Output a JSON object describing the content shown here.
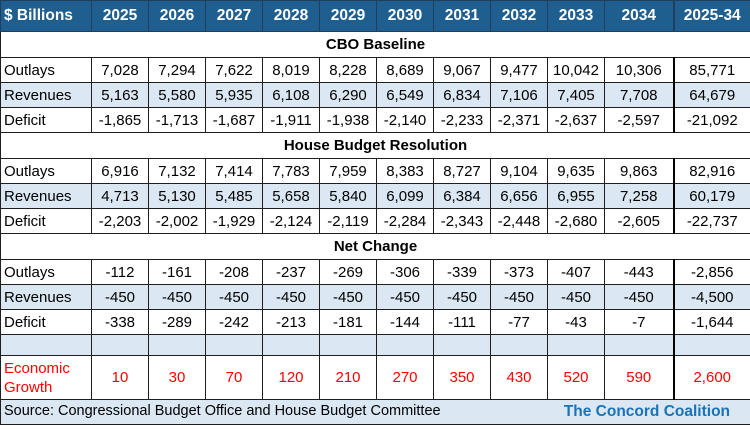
{
  "header": {
    "label": "$ Billions",
    "columns": [
      "2025",
      "2026",
      "2027",
      "2028",
      "2029",
      "2030",
      "2031",
      "2032",
      "2033",
      "2034",
      "2025-34"
    ]
  },
  "sections": [
    {
      "title": "CBO Baseline",
      "rows": [
        {
          "label": "Outlays",
          "values": [
            "7,028",
            "7,294",
            "7,622",
            "8,019",
            "8,228",
            "8,689",
            "9,067",
            "9,477",
            "10,042",
            "10,306",
            "85,771"
          ]
        },
        {
          "label": "Revenues",
          "values": [
            "5,163",
            "5,580",
            "5,935",
            "6,108",
            "6,290",
            "6,549",
            "6,834",
            "7,106",
            "7,405",
            "7,708",
            "64,679"
          ]
        },
        {
          "label": "Deficit",
          "values": [
            "-1,865",
            "-1,713",
            "-1,687",
            "-1,911",
            "-1,938",
            "-2,140",
            "-2,233",
            "-2,371",
            "-2,637",
            "-2,597",
            "-21,092"
          ]
        }
      ]
    },
    {
      "title": "House Budget Resolution",
      "rows": [
        {
          "label": "Outlays",
          "values": [
            "6,916",
            "7,132",
            "7,414",
            "7,783",
            "7,959",
            "8,383",
            "8,727",
            "9,104",
            "9,635",
            "9,863",
            "82,916"
          ]
        },
        {
          "label": "Revenues",
          "values": [
            "4,713",
            "5,130",
            "5,485",
            "5,658",
            "5,840",
            "6,099",
            "6,384",
            "6,656",
            "6,955",
            "7,258",
            "60,179"
          ]
        },
        {
          "label": "Deficit",
          "values": [
            "-2,203",
            "-2,002",
            "-1,929",
            "-2,124",
            "-2,119",
            "-2,284",
            "-2,343",
            "-2,448",
            "-2,680",
            "-2,605",
            "-22,737"
          ]
        }
      ]
    },
    {
      "title": "Net Change",
      "rows": [
        {
          "label": "Outlays",
          "values": [
            "-112",
            "-161",
            "-208",
            "-237",
            "-269",
            "-306",
            "-339",
            "-373",
            "-407",
            "-443",
            "-2,856"
          ]
        },
        {
          "label": "Revenues",
          "values": [
            "-450",
            "-450",
            "-450",
            "-450",
            "-450",
            "-450",
            "-450",
            "-450",
            "-450",
            "-450",
            "-4,500"
          ]
        },
        {
          "label": "Deficit",
          "values": [
            "-338",
            "-289",
            "-242",
            "-213",
            "-181",
            "-144",
            "-111",
            "-77",
            "-43",
            "-7",
            "-1,644"
          ]
        }
      ]
    }
  ],
  "economic_growth": {
    "label_line1": "Economic",
    "label_line2": "Growth",
    "values": [
      "10",
      "30",
      "70",
      "120",
      "210",
      "270",
      "350",
      "430",
      "520",
      "590",
      "2,600"
    ]
  },
  "footer": {
    "source": "Source: Congressional Budget Office and House Budget Committee",
    "organization": "The Concord Coalition"
  },
  "colors": {
    "header_bg": "#1f5f8f",
    "band_bg": "#dbe8f3",
    "economic_text": "#ff0000",
    "org_text": "#1a72b8"
  }
}
